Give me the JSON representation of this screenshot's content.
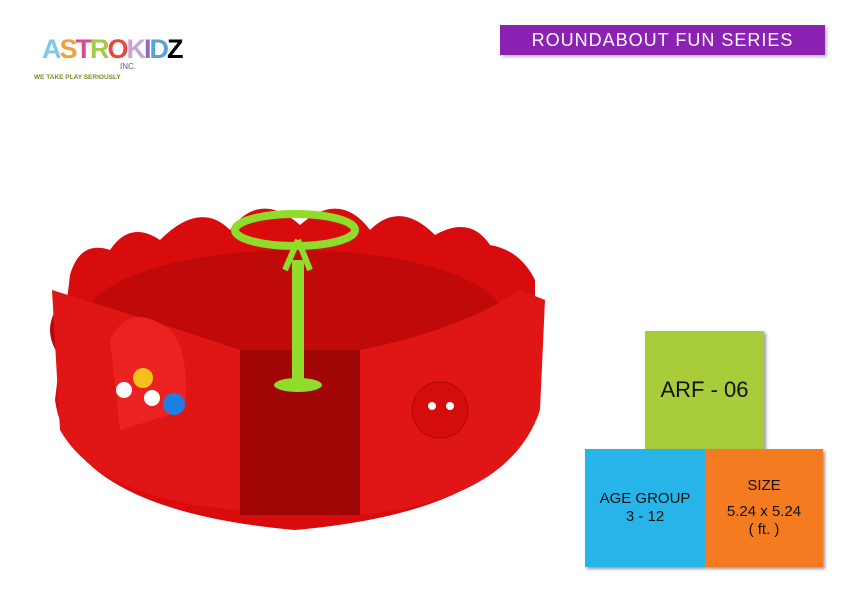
{
  "logo": {
    "brand": "ASTROKIDZ",
    "inc": "INC.",
    "tagline": "WE TAKE PLAY SERIOUSLY"
  },
  "banner": {
    "title": "ROUNDABOUT FUN SERIES"
  },
  "product": {
    "code": "ARF - 06",
    "age_label": "AGE GROUP",
    "age_value": "3 - 12",
    "size_label": "SIZE",
    "size_value": "5.24 x 5.24",
    "size_unit": "( ft. )"
  },
  "colors": {
    "banner": "#8b22b4",
    "code_box": "#a8cc3a",
    "age_box": "#27b4e8",
    "size_box": "#f47b20",
    "ride_body": "#e01010",
    "ride_handle": "#8fdc2a"
  }
}
